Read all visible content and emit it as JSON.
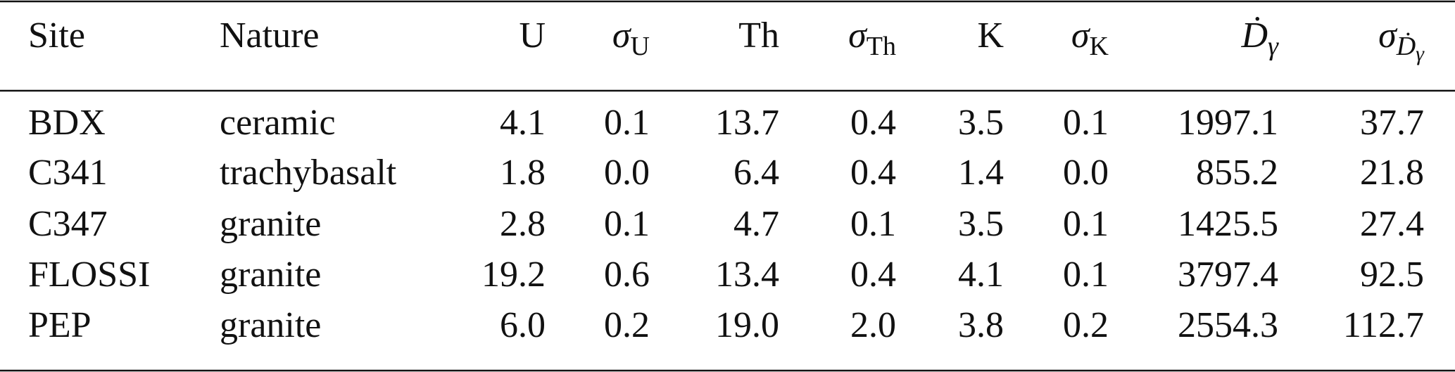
{
  "table": {
    "header": [
      "Site",
      "Nature",
      "U",
      {
        "symbol": "σ",
        "sub": "U"
      },
      "Th",
      {
        "symbol": "σ",
        "sub": "Th"
      },
      "K",
      {
        "symbol": "σ",
        "sub": "K"
      },
      {
        "symbol": "Ḋ",
        "sub": "γ"
      },
      {
        "symbol": "σ",
        "sub": "Ḋ",
        "subsub": "γ"
      }
    ],
    "rows": [
      [
        "BDX",
        "ceramic",
        "4.1",
        "0.1",
        "13.7",
        "0.4",
        "3.5",
        "0.1",
        "1997.1",
        "37.7"
      ],
      [
        "C341",
        "trachybasalt",
        "1.8",
        "0.0",
        "6.4",
        "0.4",
        "1.4",
        "0.0",
        "855.2",
        "21.8"
      ],
      [
        "C347",
        "granite",
        "2.8",
        "0.1",
        "4.7",
        "0.1",
        "3.5",
        "0.1",
        "1425.5",
        "27.4"
      ],
      [
        "FLOSSI",
        "granite",
        "19.2",
        "0.6",
        "13.4",
        "0.4",
        "4.1",
        "0.1",
        "3797.4",
        "92.5"
      ],
      [
        "PEP",
        "granite",
        "6.0",
        "0.2",
        "19.0",
        "2.0",
        "3.8",
        "0.2",
        "2554.3",
        "112.7"
      ]
    ]
  }
}
